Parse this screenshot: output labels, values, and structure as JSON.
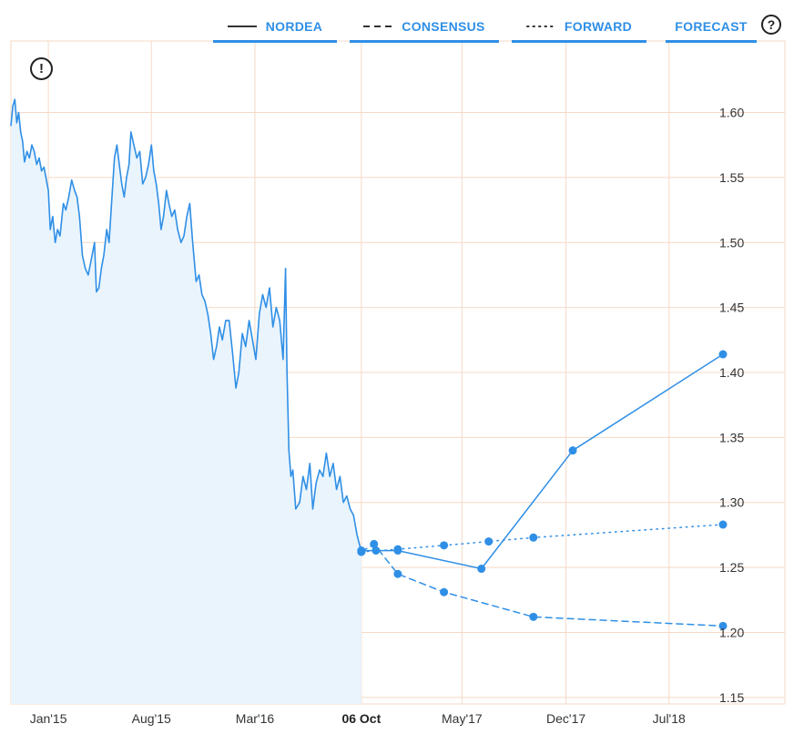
{
  "legend": {
    "items": [
      {
        "label": "NORDEA",
        "style": "solid"
      },
      {
        "label": "CONSENSUS",
        "style": "dashed"
      },
      {
        "label": "FORWARD",
        "style": "dotted"
      },
      {
        "label": "FORECAST",
        "style": "none"
      }
    ],
    "help_symbol": "?",
    "alert_symbol": "!"
  },
  "colors": {
    "line": "#2f8fe6",
    "area": "#e9f4fd",
    "grid": "#f6d9c6",
    "legend_underline": "#2f8fe6"
  },
  "chart_data": {
    "type": "line",
    "title": "",
    "xlabel": "",
    "ylabel": "",
    "ylim": [
      1.145,
      1.655
    ],
    "xlim": [
      "2014-10-16",
      "2018-10-20"
    ],
    "yticks": [
      1.6,
      1.55,
      1.5,
      1.45,
      1.4,
      1.35,
      1.3,
      1.25,
      1.2,
      1.15
    ],
    "ytick_labels": [
      "1.60",
      "1.55",
      "1.50",
      "1.45",
      "1.40",
      "1.35",
      "1.30",
      "1.25",
      "1.20",
      "1.15"
    ],
    "xticks": [
      {
        "date": "2015-01-01",
        "label": "Jan'15"
      },
      {
        "date": "2015-08-01",
        "label": "Aug'15"
      },
      {
        "date": "2016-03-01",
        "label": "Mar'16"
      },
      {
        "date": "2016-10-06",
        "label": "06 Oct",
        "bold": true
      },
      {
        "date": "2017-05-01",
        "label": "May'17"
      },
      {
        "date": "2017-12-01",
        "label": "Dec'17"
      },
      {
        "date": "2018-07-01",
        "label": "Jul'18"
      }
    ],
    "grid": true,
    "series": [
      {
        "name": "NORDEA",
        "style": "solid",
        "area": true,
        "points": [
          [
            "2014-10-16",
            1.59
          ],
          [
            "2014-10-20",
            1.605
          ],
          [
            "2014-10-24",
            1.61
          ],
          [
            "2014-10-28",
            1.592
          ],
          [
            "2014-11-01",
            1.6
          ],
          [
            "2014-11-05",
            1.585
          ],
          [
            "2014-11-09",
            1.578
          ],
          [
            "2014-11-13",
            1.562
          ],
          [
            "2014-11-18",
            1.57
          ],
          [
            "2014-11-23",
            1.565
          ],
          [
            "2014-11-28",
            1.575
          ],
          [
            "2014-12-03",
            1.57
          ],
          [
            "2014-12-08",
            1.56
          ],
          [
            "2014-12-13",
            1.565
          ],
          [
            "2014-12-18",
            1.555
          ],
          [
            "2014-12-23",
            1.558
          ],
          [
            "2015-01-01",
            1.54
          ],
          [
            "2015-01-05",
            1.51
          ],
          [
            "2015-01-10",
            1.52
          ],
          [
            "2015-01-15",
            1.5
          ],
          [
            "2015-01-20",
            1.51
          ],
          [
            "2015-01-25",
            1.505
          ],
          [
            "2015-02-01",
            1.53
          ],
          [
            "2015-02-06",
            1.525
          ],
          [
            "2015-02-12",
            1.535
          ],
          [
            "2015-02-18",
            1.548
          ],
          [
            "2015-02-24",
            1.54
          ],
          [
            "2015-03-01",
            1.535
          ],
          [
            "2015-03-06",
            1.52
          ],
          [
            "2015-03-12",
            1.49
          ],
          [
            "2015-03-18",
            1.48
          ],
          [
            "2015-03-24",
            1.475
          ],
          [
            "2015-04-01",
            1.49
          ],
          [
            "2015-04-06",
            1.5
          ],
          [
            "2015-04-10",
            1.462
          ],
          [
            "2015-04-15",
            1.465
          ],
          [
            "2015-04-20",
            1.48
          ],
          [
            "2015-04-25",
            1.49
          ],
          [
            "2015-05-01",
            1.51
          ],
          [
            "2015-05-06",
            1.5
          ],
          [
            "2015-05-11",
            1.53
          ],
          [
            "2015-05-17",
            1.565
          ],
          [
            "2015-05-22",
            1.575
          ],
          [
            "2015-05-27",
            1.56
          ],
          [
            "2015-06-01",
            1.545
          ],
          [
            "2015-06-06",
            1.535
          ],
          [
            "2015-06-11",
            1.55
          ],
          [
            "2015-06-16",
            1.56
          ],
          [
            "2015-06-20",
            1.585
          ],
          [
            "2015-06-26",
            1.575
          ],
          [
            "2015-07-02",
            1.565
          ],
          [
            "2015-07-08",
            1.57
          ],
          [
            "2015-07-14",
            1.545
          ],
          [
            "2015-07-20",
            1.55
          ],
          [
            "2015-07-26",
            1.56
          ],
          [
            "2015-08-01",
            1.575
          ],
          [
            "2015-08-06",
            1.555
          ],
          [
            "2015-08-11",
            1.545
          ],
          [
            "2015-08-16",
            1.53
          ],
          [
            "2015-08-21",
            1.51
          ],
          [
            "2015-08-26",
            1.52
          ],
          [
            "2015-09-01",
            1.54
          ],
          [
            "2015-09-06",
            1.53
          ],
          [
            "2015-09-12",
            1.52
          ],
          [
            "2015-09-18",
            1.525
          ],
          [
            "2015-09-24",
            1.51
          ],
          [
            "2015-10-01",
            1.5
          ],
          [
            "2015-10-07",
            1.505
          ],
          [
            "2015-10-13",
            1.52
          ],
          [
            "2015-10-19",
            1.53
          ],
          [
            "2015-10-25",
            1.5
          ],
          [
            "2015-11-01",
            1.47
          ],
          [
            "2015-11-07",
            1.475
          ],
          [
            "2015-11-13",
            1.46
          ],
          [
            "2015-11-19",
            1.455
          ],
          [
            "2015-11-25",
            1.445
          ],
          [
            "2015-12-01",
            1.43
          ],
          [
            "2015-12-07",
            1.41
          ],
          [
            "2015-12-13",
            1.42
          ],
          [
            "2015-12-19",
            1.435
          ],
          [
            "2015-12-25",
            1.425
          ],
          [
            "2016-01-01",
            1.44
          ],
          [
            "2016-01-08",
            1.44
          ],
          [
            "2016-01-15",
            1.415
          ],
          [
            "2016-01-22",
            1.388
          ],
          [
            "2016-01-28",
            1.4
          ],
          [
            "2016-02-04",
            1.43
          ],
          [
            "2016-02-11",
            1.42
          ],
          [
            "2016-02-18",
            1.44
          ],
          [
            "2016-02-25",
            1.425
          ],
          [
            "2016-03-03",
            1.41
          ],
          [
            "2016-03-10",
            1.445
          ],
          [
            "2016-03-17",
            1.46
          ],
          [
            "2016-03-24",
            1.45
          ],
          [
            "2016-03-31",
            1.465
          ],
          [
            "2016-04-07",
            1.435
          ],
          [
            "2016-04-14",
            1.45
          ],
          [
            "2016-04-21",
            1.44
          ],
          [
            "2016-04-28",
            1.41
          ],
          [
            "2016-05-03",
            1.48
          ],
          [
            "2016-05-06",
            1.4
          ],
          [
            "2016-05-10",
            1.34
          ],
          [
            "2016-05-14",
            1.32
          ],
          [
            "2016-05-18",
            1.325
          ],
          [
            "2016-05-24",
            1.295
          ],
          [
            "2016-06-01",
            1.3
          ],
          [
            "2016-06-08",
            1.32
          ],
          [
            "2016-06-15",
            1.31
          ],
          [
            "2016-06-22",
            1.33
          ],
          [
            "2016-06-28",
            1.295
          ],
          [
            "2016-07-05",
            1.315
          ],
          [
            "2016-07-12",
            1.325
          ],
          [
            "2016-07-19",
            1.32
          ],
          [
            "2016-07-26",
            1.338
          ],
          [
            "2016-08-02",
            1.32
          ],
          [
            "2016-08-09",
            1.33
          ],
          [
            "2016-08-16",
            1.31
          ],
          [
            "2016-08-23",
            1.32
          ],
          [
            "2016-08-30",
            1.3
          ],
          [
            "2016-09-06",
            1.305
          ],
          [
            "2016-09-13",
            1.295
          ],
          [
            "2016-09-20",
            1.29
          ],
          [
            "2016-09-27",
            1.275
          ],
          [
            "2016-10-06",
            1.262
          ]
        ]
      },
      {
        "name": "CONSENSUS",
        "style": "dashed",
        "markers": true,
        "points": [
          [
            "2016-10-06",
            1.262
          ],
          [
            "2016-11-01",
            1.268
          ],
          [
            "2016-12-20",
            1.245
          ],
          [
            "2017-03-25",
            1.231
          ],
          [
            "2017-09-25",
            1.212
          ],
          [
            "2018-10-20",
            1.205
          ]
        ]
      },
      {
        "name": "FORWARD",
        "style": "dotted",
        "markers": true,
        "points": [
          [
            "2016-10-06",
            1.262
          ],
          [
            "2016-12-20",
            1.264
          ],
          [
            "2017-03-25",
            1.267
          ],
          [
            "2017-06-25",
            1.27
          ],
          [
            "2017-09-25",
            1.273
          ],
          [
            "2018-10-20",
            1.283
          ]
        ]
      },
      {
        "name": "FORECAST",
        "style": "solid",
        "markers": true,
        "points": [
          [
            "2016-10-06",
            1.263
          ],
          [
            "2016-11-05",
            1.263
          ],
          [
            "2016-12-20",
            1.263
          ],
          [
            "2017-06-10",
            1.249
          ],
          [
            "2017-12-15",
            1.34
          ],
          [
            "2018-10-20",
            1.414
          ]
        ]
      }
    ]
  }
}
